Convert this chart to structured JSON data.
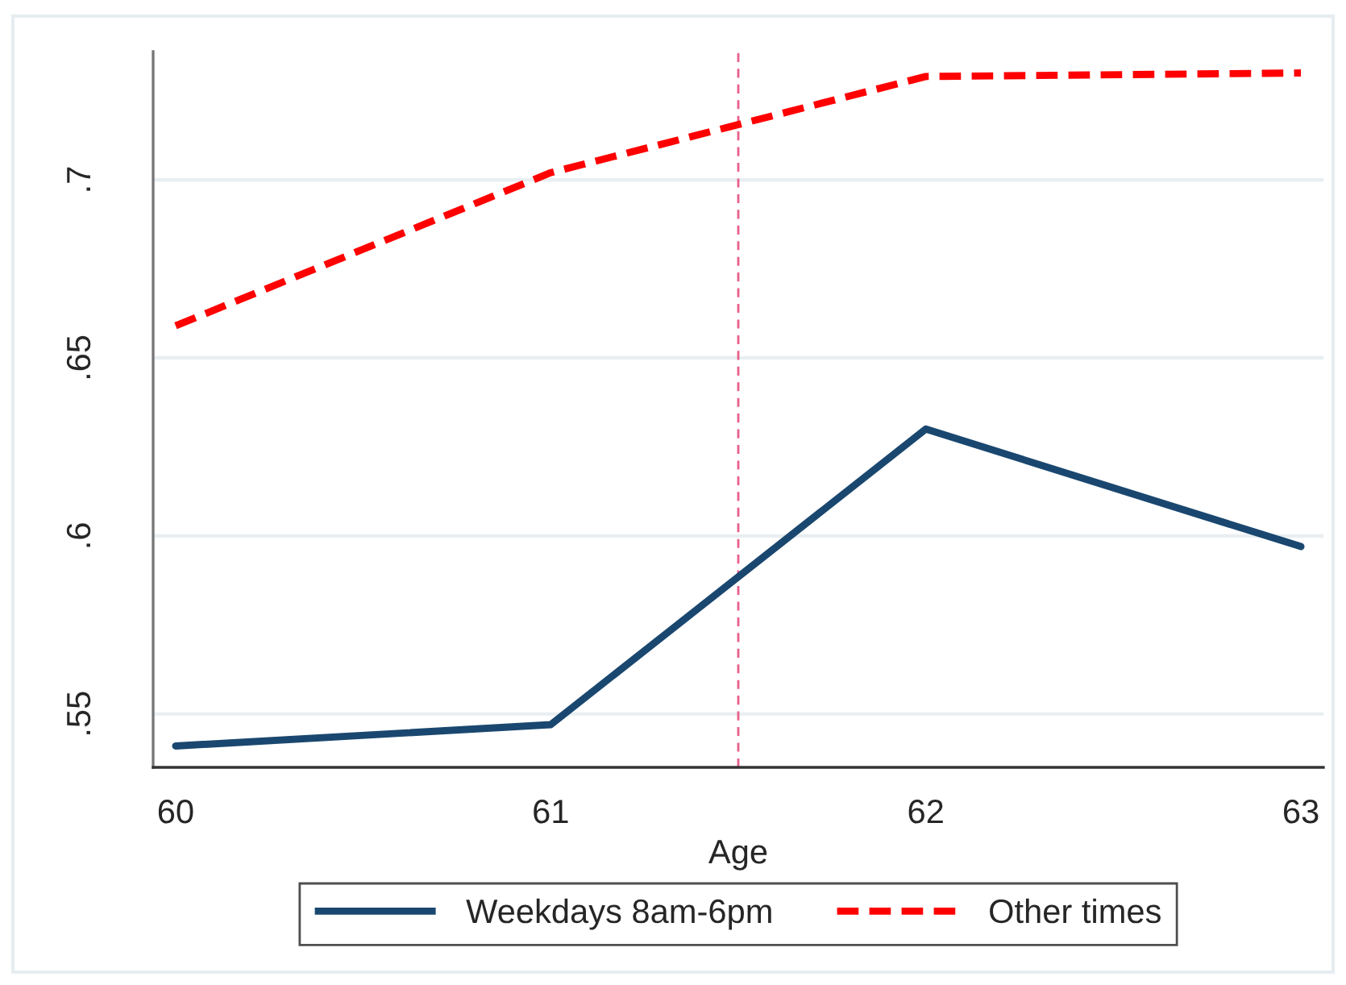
{
  "chart_data": {
    "type": "line",
    "xlabel": "Age",
    "x": [
      60,
      61,
      62,
      63
    ],
    "series": [
      {
        "name": "Weekdays 8am-6pm",
        "color": "#1a476f",
        "line_style": "solid",
        "values": [
          0.541,
          0.547,
          0.63,
          0.597
        ]
      },
      {
        "name": "Other times",
        "color": "#ff0000",
        "line_style": "dashed",
        "values": [
          0.659,
          0.702,
          0.729,
          0.73
        ]
      }
    ],
    "xlim": [
      59.94,
      63.06
    ],
    "xticks": [
      60,
      61,
      62,
      63
    ],
    "ylim": [
      0.535,
      0.736
    ],
    "yticks": [
      {
        "value": 0.55,
        "label": ".55"
      },
      {
        "value": 0.6,
        "label": ".6"
      },
      {
        "value": 0.65,
        "label": ".65"
      },
      {
        "value": 0.7,
        "label": ".7"
      }
    ],
    "grid": "y",
    "legend": "bottom",
    "ref_lines": [
      {
        "axis": "x",
        "value": 61.5,
        "color": "#e8608a",
        "line_style": "dashed"
      }
    ]
  }
}
